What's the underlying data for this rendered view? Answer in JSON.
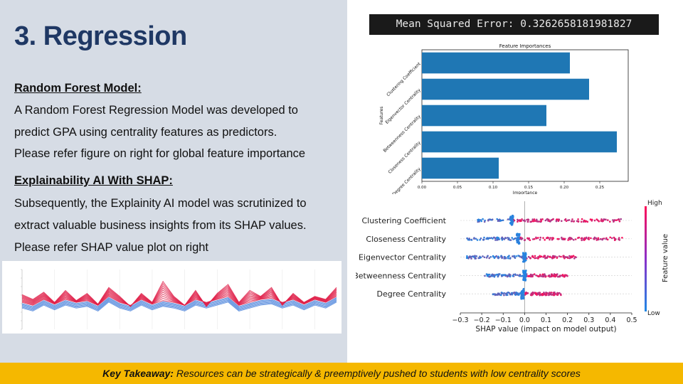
{
  "slide": {
    "title": "3. Regression",
    "rf_heading": "Random Forest Model:",
    "rf_line1": "A Random Forest Regression Model was developed to",
    "rf_line2": "predict GPA using centrality features as predictors.",
    "rf_line3": "Please refer figure on right for global feature importance",
    "shap_heading": "Explainability AI With SHAP:",
    "shap_line1": "Subsequently, the Explainity AI model was scrutinized to",
    "shap_line2": "extract valuable business insights from its SHAP values.",
    "shap_line3": "Please refer SHAP value plot on right",
    "mse": "Mean Squared Error: 0.3262658181981827",
    "takeaway_label": "Key Takeaway:",
    "takeaway_text": " Resources can be strategically & preemptively pushed to students with low centrality scores"
  },
  "colors": {
    "bar": "#1f77b4",
    "shap_low": "#1e88e5",
    "shap_high": "#ff0d57",
    "footer": "#f5b800",
    "title": "#1f3864"
  },
  "chart_data": [
    {
      "type": "bar",
      "orientation": "horizontal",
      "title": "Feature Importances",
      "xlabel": "Importance",
      "ylabel": "Features",
      "categories": [
        "Degree Centrality",
        "Closeness Centrality",
        "Betweenness Centrality",
        "Eigenvector Centrality",
        "Clustering Coefficient"
      ],
      "values": [
        0.108,
        0.274,
        0.175,
        0.235,
        0.208
      ],
      "xlim": [
        0,
        0.29
      ],
      "xticks": [
        "0.00",
        "0.05",
        "0.10",
        "0.15",
        "0.20",
        "0.25"
      ],
      "grid": false
    },
    {
      "type": "scatter",
      "subtype": "shap-beeswarm",
      "xlabel": "SHAP value (impact on model output)",
      "colorbar_label": "Feature value",
      "colorbar_high": "High",
      "colorbar_low": "Low",
      "xlim": [
        -0.3,
        0.5
      ],
      "xticks": [
        "−0.3",
        "−0.2",
        "−0.1",
        "0.0",
        "0.1",
        "0.2",
        "0.3",
        "0.4",
        "0.5"
      ],
      "series": [
        {
          "name": "Clustering Coefficient",
          "min": -0.22,
          "max": 0.45,
          "low_center": -0.06
        },
        {
          "name": "Closeness Centrality",
          "min": -0.27,
          "max": 0.47,
          "low_center": -0.03
        },
        {
          "name": "Eigenvector Centrality",
          "min": -0.27,
          "max": 0.24,
          "low_center": 0.0
        },
        {
          "name": "Betweenness Centrality",
          "min": -0.19,
          "max": 0.2,
          "low_center": 0.0
        },
        {
          "name": "Degree Centrality",
          "min": -0.15,
          "max": 0.17,
          "low_center": -0.01
        }
      ]
    },
    {
      "type": "line",
      "subtype": "parallel-coordinates-thumbnail",
      "series": [
        {
          "name": "high",
          "values": [
            0.42,
            0.5,
            0.38,
            0.55,
            0.35,
            0.52,
            0.4,
            0.58,
            0.3,
            0.45,
            0.62,
            0.4,
            0.55,
            0.2,
            0.45,
            0.6,
            0.35,
            0.62,
            0.4,
            0.25,
            0.55,
            0.35,
            0.45,
            0.3,
            0.6,
            0.4,
            0.55,
            0.45,
            0.5,
            0.3
          ]
        },
        {
          "name": "low",
          "values": [
            0.55,
            0.6,
            0.5,
            0.58,
            0.5,
            0.55,
            0.52,
            0.6,
            0.45,
            0.55,
            0.6,
            0.5,
            0.58,
            0.52,
            0.55,
            0.6,
            0.5,
            0.55,
            0.5,
            0.45,
            0.6,
            0.55,
            0.5,
            0.48,
            0.55,
            0.5,
            0.58,
            0.5,
            0.55,
            0.45
          ]
        }
      ]
    }
  ]
}
